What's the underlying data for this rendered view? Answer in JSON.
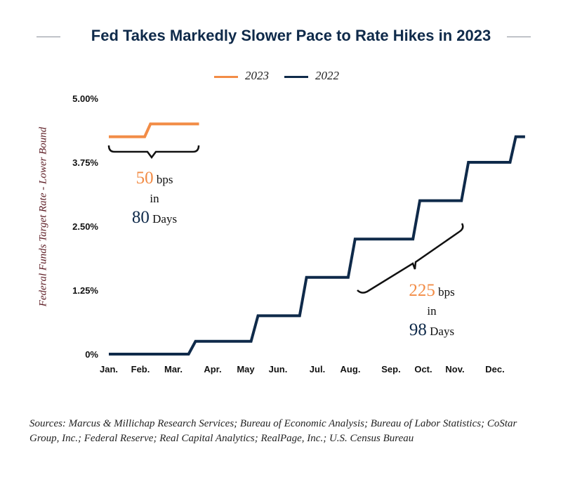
{
  "chart_data": {
    "type": "line",
    "title": "Fed Takes Markedly Slower Pace to Rate Hikes in 2023",
    "ylabel": "Federal Funds Target Rate - Lower Bound",
    "yticks": [
      "0%",
      "1.25%",
      "2.50%",
      "3.75%",
      "5.00%"
    ],
    "ytick_values": [
      0,
      1.25,
      2.5,
      3.75,
      5
    ],
    "ylim": [
      0,
      5
    ],
    "xticks": [
      "Jan.",
      "Feb.",
      "Mar.",
      "Apr.",
      "May",
      "Jun.",
      "Jul.",
      "Aug.",
      "Sep.",
      "Oct.",
      "Nov.",
      "Dec."
    ],
    "legend_position": "top",
    "grid": false,
    "series": [
      {
        "name": "2023",
        "color": "#f28c46",
        "points": [
          [
            "01-01",
            4.25
          ],
          [
            "02-01",
            4.25
          ],
          [
            "02-06",
            4.5
          ],
          [
            "03-20",
            4.5
          ]
        ]
      },
      {
        "name": "2022",
        "color": "#0f2a4a",
        "points": [
          [
            "01-01",
            0
          ],
          [
            "03-11",
            0
          ],
          [
            "03-17",
            0.25
          ],
          [
            "05-04",
            0.25
          ],
          [
            "05-10",
            0.75
          ],
          [
            "06-15",
            0.75
          ],
          [
            "06-21",
            1.5
          ],
          [
            "07-27",
            1.5
          ],
          [
            "08-02",
            2.25
          ],
          [
            "09-21",
            2.25
          ],
          [
            "09-27",
            3.0
          ],
          [
            "11-02",
            3.0
          ],
          [
            "11-08",
            3.75
          ],
          [
            "12-14",
            3.75
          ],
          [
            "12-19",
            4.25
          ],
          [
            "12-27",
            4.25
          ]
        ]
      }
    ],
    "annotations": [
      {
        "value": "50",
        "unit": "bps",
        "connector": "in",
        "days": "80",
        "days_label": "Days"
      },
      {
        "value": "225",
        "unit": "bps",
        "connector": "in",
        "days": "98",
        "days_label": "Days"
      }
    ]
  },
  "sources": "Sources: Marcus & Millichap Research Services; Bureau of Economic Analysis; Bureau of Labor Statistics; CoStar Group, Inc.; Federal Reserve; Real Capital Analytics; RealPage, Inc.; U.S. Census Bureau"
}
